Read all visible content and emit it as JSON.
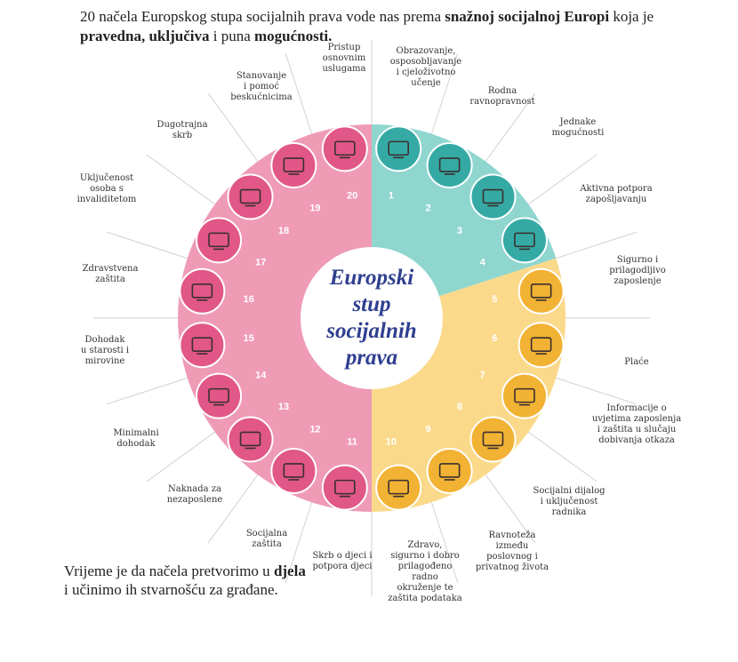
{
  "header": {
    "p1": "20 načela Europskog stupa socijalnih prava vode  nas prema ",
    "b1": "snažnoj socijalnoj Europi",
    "p2": " koja je ",
    "b2": "pravedna, uključiva",
    "p3": " i puna ",
    "b3": "mogućnosti."
  },
  "center": {
    "lines": [
      "Europski",
      "stup",
      "socijalnih",
      "prava"
    ]
  },
  "footer": {
    "p1": "Vrijeme je da načela pretvorimo u ",
    "b1": "djela",
    "p2": " i učinimo ih stvarnošću za građane."
  },
  "colors": {
    "teal": "#8fd6cf",
    "teal_dark": "#35aaa5",
    "yellow": "#fbd98a",
    "yellow_dark": "#f2b233",
    "pink": "#ef9bb6",
    "pink_dark": "#e15787",
    "center_text": "#2f3f8f"
  },
  "principles": [
    {
      "num": "1",
      "label": [
        "Obrazovanje,",
        "osposobljavanje",
        "i cjeloživotno",
        "učenje"
      ],
      "icon": "education-monitor-icon"
    },
    {
      "num": "2",
      "label": [
        "Rodna",
        "ravnopravnost"
      ],
      "icon": "gender-scales-icon"
    },
    {
      "num": "3",
      "label": [
        "Jednake",
        "mogućnosti"
      ],
      "icon": "equal-opportunities-icon"
    },
    {
      "num": "4",
      "label": [
        "Aktivna potpora",
        "zapošljavanju"
      ],
      "icon": "presentation-board-icon"
    },
    {
      "num": "5",
      "label": [
        "Sigurno i",
        "prilagodljivo",
        "zaposlenje"
      ],
      "icon": "workers-icon"
    },
    {
      "num": "6",
      "label": [
        "Plaće"
      ],
      "icon": "wage-growth-icon"
    },
    {
      "num": "7",
      "label": [
        "Informacije o",
        "uvjetima zaposlenja",
        "i zaštita u slučaju",
        "dobivanja otkaza"
      ],
      "icon": "info-shield-icon"
    },
    {
      "num": "8",
      "label": [
        "Socijalni dijalog",
        "i uključenost",
        "radnika"
      ],
      "icon": "handshake-icon"
    },
    {
      "num": "9",
      "label": [
        "Ravnoteža",
        "između",
        "poslovnog i",
        "privatnog života"
      ],
      "icon": "work-life-icon"
    },
    {
      "num": "10",
      "label": [
        "Zdravo,",
        "sigurno i dobro",
        "prilagođeno",
        "radno",
        "okruženje te",
        "zaštita podataka"
      ],
      "icon": "safe-worker-icon"
    },
    {
      "num": "11",
      "label": [
        "Skrb o djeci i",
        "potpora djeci"
      ],
      "icon": "child-care-icon"
    },
    {
      "num": "12",
      "label": [
        "Socijalna",
        "zaštita"
      ],
      "icon": "social-protection-icon"
    },
    {
      "num": "13",
      "label": [
        "Naknada za",
        "nezaposlene"
      ],
      "icon": "unemployment-umbrella-icon"
    },
    {
      "num": "14",
      "label": [
        "Minimalni",
        "dohodak"
      ],
      "icon": "minimum-income-icon"
    },
    {
      "num": "15",
      "label": [
        "Dohodak",
        "u starosti i",
        "mirovine"
      ],
      "icon": "pension-document-icon"
    },
    {
      "num": "16",
      "label": [
        "Zdravstvena",
        "zaštita"
      ],
      "icon": "health-kit-icon"
    },
    {
      "num": "17",
      "label": [
        "Uključenost",
        "osoba s",
        "invaliditetom"
      ],
      "icon": "wheelchair-icon"
    },
    {
      "num": "18",
      "label": [
        "Dugotrajna",
        "skrb"
      ],
      "icon": "long-term-care-icon"
    },
    {
      "num": "19",
      "label": [
        "Stanovanje",
        "i pomoć",
        "beskućnicima"
      ],
      "icon": "housing-icon"
    },
    {
      "num": "20",
      "label": [
        "Pristup",
        "osnovnim",
        "uslugama"
      ],
      "icon": "basic-services-icon"
    }
  ]
}
